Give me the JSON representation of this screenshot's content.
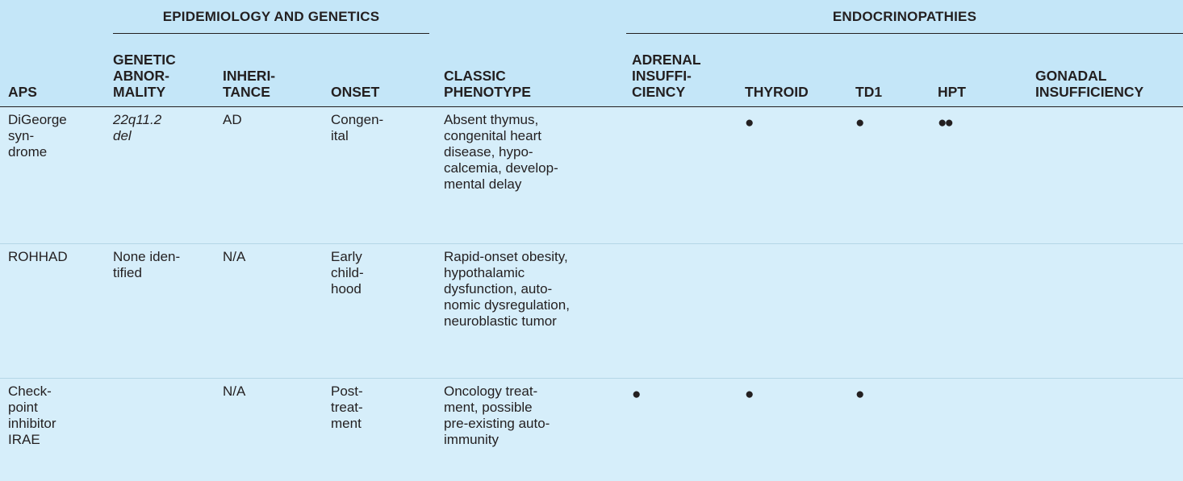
{
  "header": {
    "group_epidemiology": "EPIDEMIOLOGY AND GENETICS",
    "group_endocrinopathies": "ENDOCRINOPATHIES",
    "columns": {
      "aps": "APS",
      "genetic": "GENETIC\nABNOR-\nMALITY",
      "inheritance": "INHERI-\nTANCE",
      "onset": "ONSET",
      "phenotype": "CLASSIC\nPHENOTYPE",
      "adrenal": "ADRENAL\nINSUFFI-\nCIENCY",
      "thyroid": "THYROID",
      "td1": "TD1",
      "hpt": "HPT",
      "gonadal": "GONADAL\nINSUFFICIENCY"
    }
  },
  "rows": [
    {
      "aps": "DiGeorge\n  syn-\n  drome",
      "genetic": "22q11.2\n  del",
      "inheritance": "AD",
      "onset": "Congen-\n  ital",
      "phenotype": "Absent thymus,\n  congenital heart\n  disease, hypo-\n  calcemia, develop-\n  mental delay",
      "adrenal": "",
      "thyroid": "●",
      "td1": "●",
      "hpt": "●●",
      "gonadal": ""
    },
    {
      "aps": "ROHHAD",
      "genetic": "None iden-\n  tified",
      "inheritance": "N/A",
      "onset": "Early\n  child-\n  hood",
      "phenotype": "Rapid-onset obesity,\n  hypothalamic\n  dysfunction, auto-\n  nomic dysregulation,\n  neuroblastic tumor",
      "adrenal": "",
      "thyroid": "",
      "td1": "",
      "hpt": "",
      "gonadal": ""
    },
    {
      "aps": "Check-\n  point\n  inhibitor\n  IRAE",
      "genetic": "",
      "inheritance": "N/A",
      "onset": "Post-\n  treat-\n  ment",
      "phenotype": "Oncology treat-\n  ment, possible\n  pre-existing auto-\n  immunity",
      "adrenal": "●",
      "thyroid": "●",
      "td1": "●",
      "hpt": "",
      "gonadal": ""
    }
  ]
}
